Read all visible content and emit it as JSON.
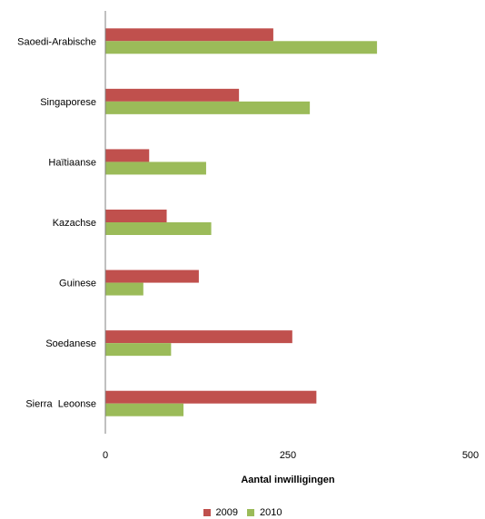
{
  "chart_data": {
    "type": "bar",
    "orientation": "horizontal",
    "categories": [
      "Saoedi-Arabische",
      "Singaporese",
      "Haïtiaanse",
      "Kazachse",
      "Guinese",
      "Soedanese",
      "Sierra  Leoonse"
    ],
    "series": [
      {
        "name": "2009",
        "values": [
          230,
          183,
          60,
          84,
          128,
          256,
          289
        ],
        "color": "#c0504d"
      },
      {
        "name": "2010",
        "values": [
          372,
          280,
          138,
          145,
          52,
          90,
          107
        ],
        "color": "#9bbb59"
      }
    ],
    "xlabel": "Aantal inwilligingen",
    "xlim": [
      0,
      500
    ],
    "xticks": [
      0,
      250,
      500
    ],
    "grid": false,
    "legend_position": "bottom"
  }
}
